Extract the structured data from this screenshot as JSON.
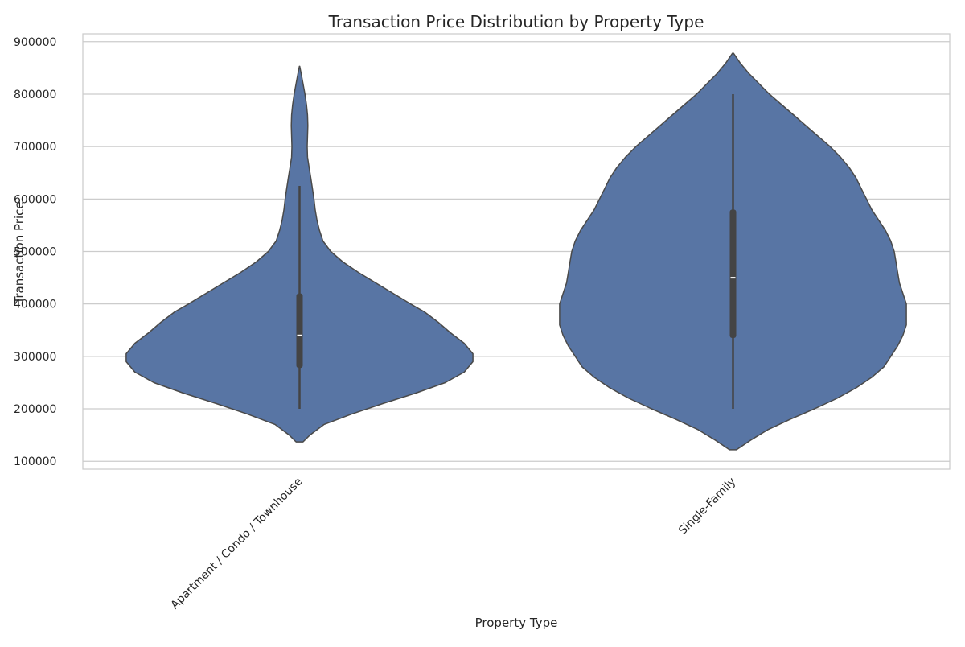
{
  "chart_data": {
    "type": "violin",
    "title": "Transaction Price Distribution by Property Type",
    "xlabel": "Property Type",
    "ylabel": "Transaction Price",
    "ylim": [
      85000,
      915000
    ],
    "yticks": [
      100000,
      200000,
      300000,
      400000,
      500000,
      600000,
      700000,
      800000,
      900000
    ],
    "grid": true,
    "categories": [
      "Apartment / Condo / Townhouse",
      "Single-Family"
    ],
    "colors": {
      "violin_fill": "#5875a4",
      "violin_edge": "#4a4a4a",
      "box": "#444444",
      "median": "#ffffff",
      "grid": "#cccccc",
      "axes": "#cccccc"
    },
    "violins": [
      {
        "category": "Apartment / Condo / Townhouse",
        "min": 200000,
        "q1": 278000,
        "median": 340000,
        "q3": 420000,
        "max": 625000,
        "profile": [
          [
            137000,
            0.02
          ],
          [
            150000,
            0.06
          ],
          [
            170000,
            0.14
          ],
          [
            190000,
            0.3
          ],
          [
            210000,
            0.48
          ],
          [
            230000,
            0.67
          ],
          [
            250000,
            0.84
          ],
          [
            270000,
            0.95
          ],
          [
            290000,
            1.0
          ],
          [
            305000,
            1.0
          ],
          [
            325000,
            0.95
          ],
          [
            345000,
            0.87
          ],
          [
            365000,
            0.8
          ],
          [
            385000,
            0.72
          ],
          [
            400000,
            0.64
          ],
          [
            420000,
            0.54
          ],
          [
            440000,
            0.44
          ],
          [
            460000,
            0.34
          ],
          [
            480000,
            0.25
          ],
          [
            500000,
            0.18
          ],
          [
            520000,
            0.135
          ],
          [
            540000,
            0.115
          ],
          [
            560000,
            0.1
          ],
          [
            580000,
            0.09
          ],
          [
            600000,
            0.083
          ],
          [
            620000,
            0.074
          ],
          [
            640000,
            0.065
          ],
          [
            660000,
            0.055
          ],
          [
            680000,
            0.046
          ],
          [
            700000,
            0.044
          ],
          [
            720000,
            0.046
          ],
          [
            740000,
            0.048
          ],
          [
            760000,
            0.046
          ],
          [
            780000,
            0.04
          ],
          [
            800000,
            0.031
          ],
          [
            820000,
            0.02
          ],
          [
            840000,
            0.009
          ],
          [
            853000,
            0.001
          ]
        ]
      },
      {
        "category": "Single-Family",
        "min": 200000,
        "q1": 335000,
        "median": 450000,
        "q3": 580000,
        "max": 800000,
        "profile": [
          [
            122000,
            0.02
          ],
          [
            140000,
            0.1
          ],
          [
            160000,
            0.2
          ],
          [
            180000,
            0.33
          ],
          [
            200000,
            0.47
          ],
          [
            220000,
            0.6
          ],
          [
            240000,
            0.71
          ],
          [
            260000,
            0.8
          ],
          [
            280000,
            0.87
          ],
          [
            300000,
            0.91
          ],
          [
            320000,
            0.95
          ],
          [
            340000,
            0.98
          ],
          [
            360000,
            1.0
          ],
          [
            380000,
            1.0
          ],
          [
            400000,
            1.0
          ],
          [
            420000,
            0.98
          ],
          [
            440000,
            0.96
          ],
          [
            460000,
            0.95
          ],
          [
            480000,
            0.94
          ],
          [
            500000,
            0.93
          ],
          [
            520000,
            0.91
          ],
          [
            540000,
            0.88
          ],
          [
            560000,
            0.84
          ],
          [
            580000,
            0.8
          ],
          [
            600000,
            0.77
          ],
          [
            620000,
            0.74
          ],
          [
            640000,
            0.71
          ],
          [
            660000,
            0.67
          ],
          [
            680000,
            0.62
          ],
          [
            700000,
            0.56
          ],
          [
            720000,
            0.49
          ],
          [
            740000,
            0.42
          ],
          [
            760000,
            0.35
          ],
          [
            780000,
            0.28
          ],
          [
            800000,
            0.21
          ],
          [
            820000,
            0.15
          ],
          [
            840000,
            0.09
          ],
          [
            860000,
            0.04
          ],
          [
            878000,
            0.003
          ]
        ]
      }
    ]
  }
}
